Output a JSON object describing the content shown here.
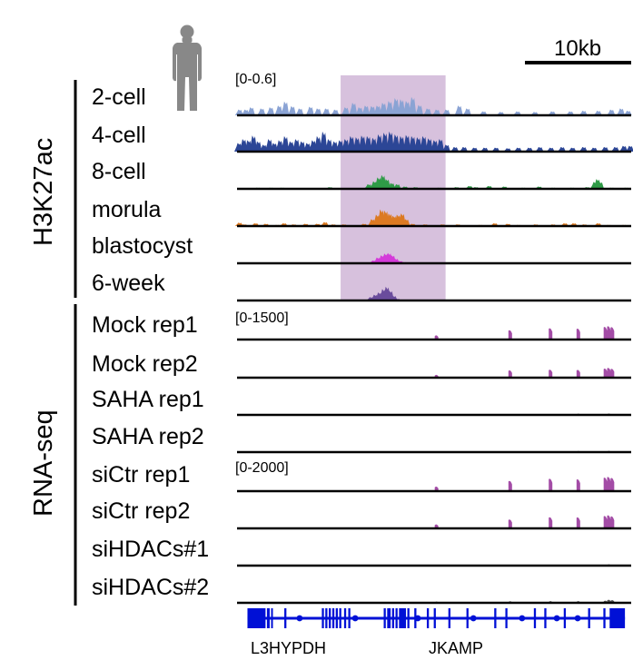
{
  "colors": {
    "highlight": "#c9acd2",
    "c2cell": "#8aa3d4",
    "c4cell": "#2c4696",
    "c8cell": "#2f9b47",
    "morula": "#dc7a22",
    "blastocyst": "#d43ad9",
    "week6": "#6a4c9c",
    "rna": "#a34ca6",
    "rnaGrey": "#555555",
    "gene": "#0010d6",
    "baseline": "#000000",
    "silhouette": "#888888"
  },
  "scale_bar": {
    "label": "10kb",
    "length_kb": 10
  },
  "groups": [
    {
      "label": "H3K27ac"
    },
    {
      "label": "RNA-seq"
    }
  ],
  "ranges": [
    "[0-0.6]",
    "[0-1500]",
    "[0-2000]"
  ],
  "genes": [
    {
      "label": "L3HYPDH"
    },
    {
      "label": "JKAMP"
    }
  ],
  "chart_data": {
    "type": "genome-browser-tracks",
    "title": "",
    "x_window_kb": [
      0,
      56.7
    ],
    "highlight_kb": [
      14.9,
      30.0
    ],
    "tracks": [
      {
        "label": "2-cell",
        "group": "H3K27ac",
        "range": [
          0,
          0.6
        ],
        "range_label": "[0-0.6]",
        "color": "c2cell",
        "peaks": [
          [
            0.3,
            0.1
          ],
          [
            1.2,
            0.1
          ],
          [
            2.0,
            0.14
          ],
          [
            3.5,
            0.12
          ],
          [
            4.8,
            0.14
          ],
          [
            6.0,
            0.17
          ],
          [
            6.9,
            0.24
          ],
          [
            7.9,
            0.16
          ],
          [
            9.0,
            0.12
          ],
          [
            10.5,
            0.15
          ],
          [
            11.6,
            0.12
          ],
          [
            12.8,
            0.12
          ],
          [
            14.1,
            0.1
          ],
          [
            15.6,
            0.14
          ],
          [
            16.7,
            0.22
          ],
          [
            17.6,
            0.14
          ],
          [
            18.5,
            0.17
          ],
          [
            19.4,
            0.16
          ],
          [
            20.2,
            0.17
          ],
          [
            21.0,
            0.22
          ],
          [
            21.9,
            0.25
          ],
          [
            22.8,
            0.3
          ],
          [
            23.6,
            0.28
          ],
          [
            24.4,
            0.25
          ],
          [
            25.2,
            0.32
          ],
          [
            26.2,
            0.18
          ],
          [
            27.4,
            0.12
          ],
          [
            28.7,
            0.1
          ],
          [
            30.1,
            0.1
          ],
          [
            31.9,
            0.17
          ],
          [
            33.1,
            0.12
          ],
          [
            35.4,
            0.07
          ],
          [
            37.9,
            0.06
          ],
          [
            40.3,
            0.07
          ],
          [
            42.8,
            0.06
          ],
          [
            45.3,
            0.07
          ],
          [
            47.9,
            0.07
          ],
          [
            49.8,
            0.08
          ],
          [
            51.9,
            0.08
          ],
          [
            53.8,
            0.1
          ],
          [
            55.2,
            0.12
          ],
          [
            56.2,
            0.08
          ]
        ]
      },
      {
        "label": "4-cell",
        "group": "H3K27ac",
        "range": [
          0,
          0.6
        ],
        "range_label": "[0-0.6]",
        "color": "c4cell",
        "peaks": [
          [
            0.2,
            0.15
          ],
          [
            0.9,
            0.22
          ],
          [
            1.6,
            0.2
          ],
          [
            2.3,
            0.28
          ],
          [
            3.0,
            0.18
          ],
          [
            3.8,
            0.12
          ],
          [
            4.6,
            0.22
          ],
          [
            5.3,
            0.15
          ],
          [
            6.1,
            0.2
          ],
          [
            6.9,
            0.27
          ],
          [
            7.7,
            0.18
          ],
          [
            8.5,
            0.22
          ],
          [
            9.3,
            0.18
          ],
          [
            10.1,
            0.15
          ],
          [
            10.9,
            0.2
          ],
          [
            11.6,
            0.27
          ],
          [
            12.4,
            0.35
          ],
          [
            13.2,
            0.22
          ],
          [
            14.0,
            0.18
          ],
          [
            14.8,
            0.2
          ],
          [
            15.6,
            0.22
          ],
          [
            16.4,
            0.27
          ],
          [
            17.2,
            0.25
          ],
          [
            18.0,
            0.28
          ],
          [
            18.8,
            0.27
          ],
          [
            19.6,
            0.24
          ],
          [
            20.4,
            0.3
          ],
          [
            21.2,
            0.33
          ],
          [
            22.0,
            0.35
          ],
          [
            22.8,
            0.3
          ],
          [
            23.6,
            0.27
          ],
          [
            24.4,
            0.29
          ],
          [
            25.2,
            0.27
          ],
          [
            26.0,
            0.25
          ],
          [
            26.8,
            0.27
          ],
          [
            27.6,
            0.23
          ],
          [
            28.4,
            0.2
          ],
          [
            29.2,
            0.22
          ],
          [
            30.1,
            0.12
          ],
          [
            31.3,
            0.08
          ],
          [
            32.6,
            0.08
          ],
          [
            34.1,
            0.07
          ],
          [
            35.6,
            0.07
          ],
          [
            37.2,
            0.07
          ],
          [
            38.9,
            0.06
          ],
          [
            40.4,
            0.07
          ],
          [
            42.0,
            0.07
          ],
          [
            43.5,
            0.08
          ],
          [
            45.1,
            0.07
          ],
          [
            46.7,
            0.08
          ],
          [
            48.2,
            0.07
          ],
          [
            49.8,
            0.08
          ],
          [
            51.3,
            0.07
          ],
          [
            52.9,
            0.08
          ],
          [
            54.4,
            0.08
          ],
          [
            55.6,
            0.1
          ],
          [
            56.5,
            0.1
          ]
        ]
      },
      {
        "label": "8-cell",
        "group": "H3K27ac",
        "range": [
          0,
          0.6
        ],
        "range_label": "[0-0.6]",
        "color": "c8cell",
        "peaks": [
          [
            2.9,
            0.02
          ],
          [
            4.8,
            0.02
          ],
          [
            6.4,
            0.02
          ],
          [
            13.3,
            0.03
          ],
          [
            18.9,
            0.08
          ],
          [
            19.7,
            0.13
          ],
          [
            20.3,
            0.2
          ],
          [
            20.9,
            0.24
          ],
          [
            21.5,
            0.17
          ],
          [
            22.2,
            0.1
          ],
          [
            23.0,
            0.08
          ],
          [
            24.1,
            0.04
          ],
          [
            25.6,
            0.03
          ],
          [
            29.0,
            0.02
          ],
          [
            31.5,
            0.03
          ],
          [
            33.4,
            0.05
          ],
          [
            34.3,
            0.03
          ],
          [
            36.2,
            0.05
          ],
          [
            38.4,
            0.04
          ],
          [
            41.1,
            0.02
          ],
          [
            43.4,
            0.04
          ],
          [
            45.4,
            0.02
          ],
          [
            48.1,
            0.02
          ],
          [
            50.3,
            0.03
          ],
          [
            51.4,
            0.12
          ],
          [
            51.8,
            0.17
          ],
          [
            52.2,
            0.12
          ],
          [
            53.8,
            0.02
          ],
          [
            55.9,
            0.02
          ]
        ]
      },
      {
        "label": "morula",
        "group": "H3K27ac",
        "range": [
          0,
          0.6
        ],
        "range_label": "[0-0.6]",
        "color": "morula",
        "peaks": [
          [
            0.3,
            0.06
          ],
          [
            1.0,
            0.03
          ],
          [
            2.6,
            0.05
          ],
          [
            4.1,
            0.04
          ],
          [
            5.7,
            0.02
          ],
          [
            6.7,
            0.05
          ],
          [
            8.1,
            0.03
          ],
          [
            9.8,
            0.04
          ],
          [
            11.5,
            0.04
          ],
          [
            12.6,
            0.07
          ],
          [
            13.8,
            0.03
          ],
          [
            15.3,
            0.03
          ],
          [
            18.2,
            0.04
          ],
          [
            19.4,
            0.12
          ],
          [
            20.1,
            0.2
          ],
          [
            20.7,
            0.29
          ],
          [
            21.3,
            0.27
          ],
          [
            21.9,
            0.22
          ],
          [
            22.5,
            0.18
          ],
          [
            23.1,
            0.2
          ],
          [
            23.7,
            0.22
          ],
          [
            24.3,
            0.12
          ],
          [
            25.2,
            0.04
          ],
          [
            27.0,
            0.03
          ],
          [
            29.5,
            0.03
          ],
          [
            31.7,
            0.03
          ],
          [
            34.9,
            0.02
          ],
          [
            37.0,
            0.05
          ],
          [
            38.9,
            0.04
          ],
          [
            40.4,
            0.02
          ],
          [
            42.9,
            0.03
          ],
          [
            45.4,
            0.03
          ],
          [
            47.1,
            0.05
          ],
          [
            48.4,
            0.05
          ],
          [
            49.9,
            0.03
          ],
          [
            51.9,
            0.05
          ],
          [
            53.4,
            0.02
          ],
          [
            55.6,
            0.02
          ]
        ]
      },
      {
        "label": "blastocyst",
        "group": "H3K27ac",
        "range": [
          0,
          0.6
        ],
        "range_label": "[0-0.6]",
        "color": "blastocyst",
        "peaks": [
          [
            19.6,
            0.05
          ],
          [
            20.2,
            0.1
          ],
          [
            20.8,
            0.14
          ],
          [
            21.3,
            0.17
          ],
          [
            21.8,
            0.18
          ],
          [
            22.3,
            0.14
          ],
          [
            22.8,
            0.08
          ],
          [
            23.4,
            0.04
          ],
          [
            24.0,
            0.02
          ]
        ]
      },
      {
        "label": "6-week",
        "group": "H3K27ac",
        "range": [
          0,
          0.6
        ],
        "range_label": "[0-0.6]",
        "color": "week6",
        "peaks": [
          [
            19.2,
            0.06
          ],
          [
            19.8,
            0.1
          ],
          [
            20.4,
            0.14
          ],
          [
            21.0,
            0.2
          ],
          [
            21.5,
            0.24
          ],
          [
            22.0,
            0.17
          ],
          [
            22.5,
            0.08
          ],
          [
            23.0,
            0.03
          ]
        ]
      },
      {
        "label": "Mock rep1",
        "group": "RNA-seq",
        "range": [
          0,
          1500
        ],
        "range_label": "[0-1500]",
        "color": "rna",
        "peaks": [
          [
            28.7,
            150
          ],
          [
            39.3,
            380
          ],
          [
            45.1,
            470
          ],
          [
            49.1,
            450
          ],
          [
            53.0,
            530
          ],
          [
            53.5,
            560
          ],
          [
            54.0,
            520
          ]
        ]
      },
      {
        "label": "Mock rep2",
        "group": "RNA-seq",
        "range": [
          0,
          1500
        ],
        "range_label": "",
        "color": "rna",
        "peaks": [
          [
            28.7,
            90
          ],
          [
            39.3,
            290
          ],
          [
            45.1,
            320
          ],
          [
            49.1,
            310
          ],
          [
            53.0,
            370
          ],
          [
            53.5,
            400
          ],
          [
            54.0,
            360
          ]
        ]
      },
      {
        "label": "SAHA rep1",
        "group": "RNA-seq",
        "range": [
          0,
          1500
        ],
        "range_label": "",
        "color": "rnaGrey",
        "peaks": [
          [
            49.1,
            15
          ],
          [
            53.5,
            20
          ]
        ]
      },
      {
        "label": "SAHA rep2",
        "group": "RNA-seq",
        "range": [
          0,
          1500
        ],
        "range_label": "",
        "color": "rnaGrey",
        "peaks": [
          [
            49.1,
            10
          ],
          [
            53.5,
            15
          ]
        ]
      },
      {
        "label": "siCtr rep1",
        "group": "RNA-seq",
        "range": [
          0,
          2000
        ],
        "range_label": "[0-2000]",
        "color": "rna",
        "peaks": [
          [
            28.7,
            220
          ],
          [
            39.3,
            560
          ],
          [
            45.1,
            690
          ],
          [
            49.1,
            660
          ],
          [
            53.0,
            760
          ],
          [
            53.5,
            800
          ],
          [
            54.0,
            740
          ]
        ]
      },
      {
        "label": "siCtr rep2",
        "group": "RNA-seq",
        "range": [
          0,
          2000
        ],
        "range_label": "",
        "color": "rna",
        "peaks": [
          [
            28.7,
            190
          ],
          [
            39.3,
            480
          ],
          [
            45.1,
            620
          ],
          [
            49.1,
            610
          ],
          [
            53.0,
            690
          ],
          [
            53.5,
            730
          ],
          [
            54.0,
            670
          ]
        ]
      },
      {
        "label": "siHDACs#1",
        "group": "RNA-seq",
        "range": [
          0,
          2000
        ],
        "range_label": "",
        "color": "rnaGrey",
        "peaks": [
          [
            53.5,
            20
          ]
        ]
      },
      {
        "label": "siHDACs#2",
        "group": "RNA-seq",
        "range": [
          0,
          2000
        ],
        "range_label": "",
        "color": "rnaGrey",
        "peaks": [
          [
            28.7,
            20
          ],
          [
            39.3,
            40
          ],
          [
            45.1,
            50
          ],
          [
            49.1,
            50
          ],
          [
            53.0,
            80
          ],
          [
            53.5,
            130
          ],
          [
            54.0,
            110
          ]
        ]
      }
    ],
    "gene_track": {
      "color": "gene",
      "span_kb": [
        1.5,
        55.8
      ],
      "exons_kb": [
        [
          1.5,
          4.1
        ],
        [
          4.3,
          4.7
        ],
        [
          4.9,
          5.1
        ],
        [
          6.8,
          7.1
        ],
        [
          12.2,
          12.5
        ],
        [
          12.7,
          13.0
        ],
        [
          13.2,
          13.5
        ],
        [
          13.7,
          14.0
        ],
        [
          14.2,
          14.5
        ],
        [
          14.7,
          15.0
        ],
        [
          15.4,
          15.7
        ],
        [
          16.0,
          16.3
        ],
        [
          21.1,
          21.4
        ],
        [
          21.6,
          22.1
        ],
        [
          22.3,
          22.6
        ],
        [
          22.8,
          23.1
        ],
        [
          23.3,
          24.3
        ],
        [
          24.5,
          24.8
        ],
        [
          25.5,
          25.8
        ],
        [
          27.3,
          27.6
        ],
        [
          28.3,
          28.6
        ],
        [
          30.4,
          30.7
        ],
        [
          33.0,
          33.3
        ],
        [
          37.0,
          37.3
        ],
        [
          38.6,
          38.9
        ],
        [
          42.7,
          43.0
        ],
        [
          44.2,
          44.5
        ],
        [
          47.0,
          47.3
        ],
        [
          50.5,
          50.8
        ],
        [
          52.7,
          53.0
        ],
        [
          53.6,
          55.8
        ]
      ]
    }
  }
}
